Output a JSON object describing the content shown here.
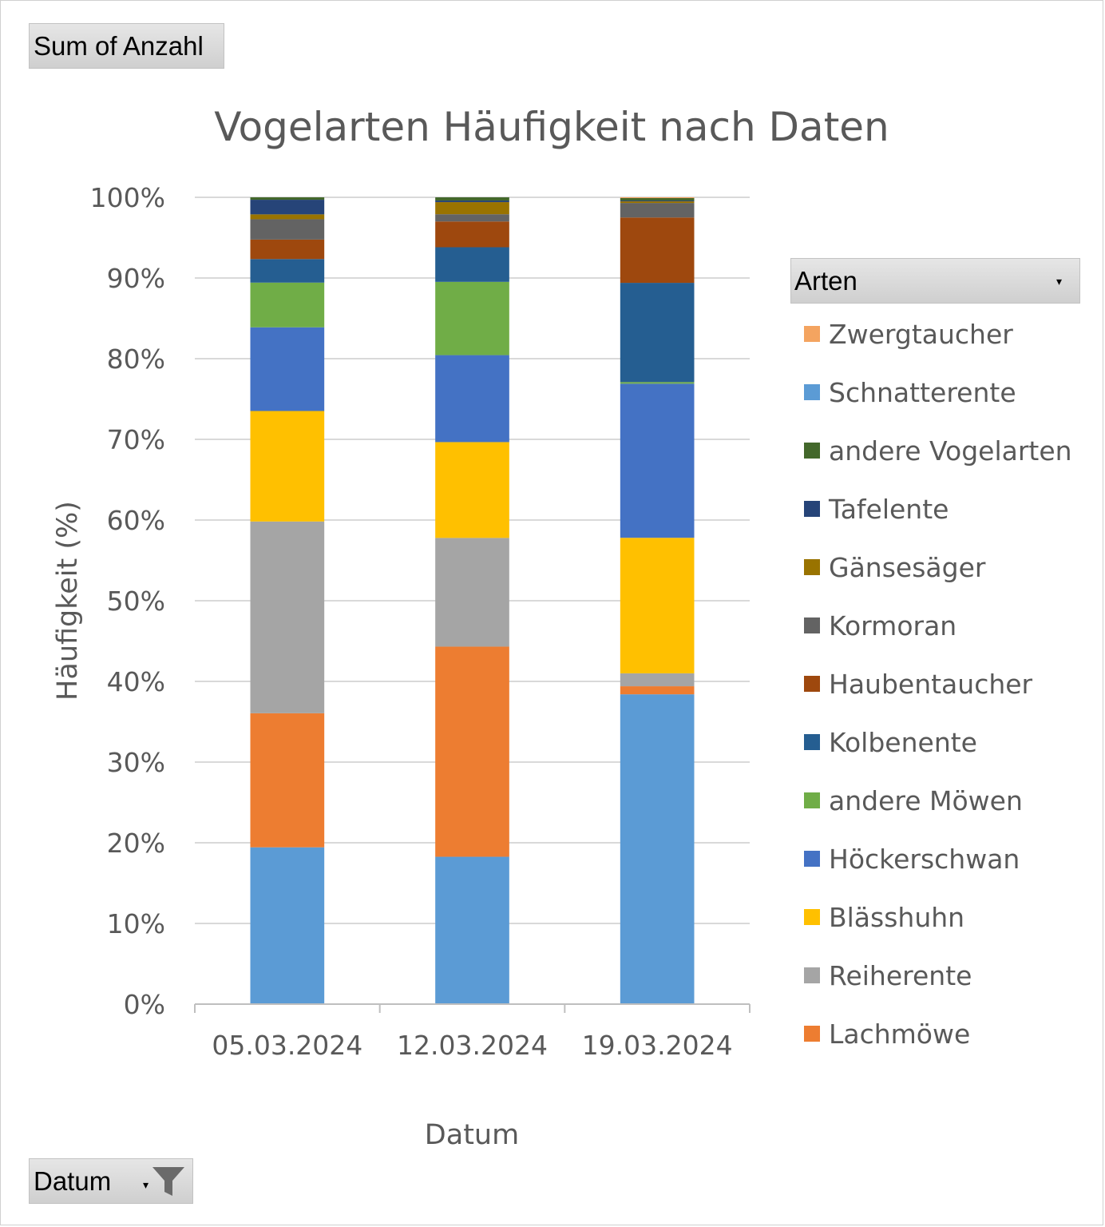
{
  "field_buttons": {
    "values_field": "Sum of Anzahl",
    "axis_field": "Datum",
    "legend_field": "Arten"
  },
  "icons": {
    "dropdown": "chevron-down-icon",
    "filter": "filter-icon"
  },
  "chart_data": {
    "type": "bar",
    "stacked": "100%",
    "title": "Vogelarten Häufigkeit nach Daten",
    "xlabel": "Datum",
    "ylabel": "Häufigkeit (%)",
    "ylim": [
      0,
      100
    ],
    "yticks": [
      "0%",
      "10%",
      "20%",
      "30%",
      "40%",
      "50%",
      "60%",
      "70%",
      "80%",
      "90%",
      "100%"
    ],
    "grid": true,
    "legend_position": "right",
    "categories": [
      "05.03.2024",
      "12.03.2024",
      "19.03.2024"
    ],
    "series": [
      {
        "name": "Schnatterente",
        "color": "#5B9BD5",
        "values": [
          19.3,
          18.3,
          38.4
        ]
      },
      {
        "name": "Lachmöwe",
        "color": "#ED7D31",
        "values": [
          16.5,
          26.1,
          1.0
        ]
      },
      {
        "name": "Reiherente",
        "color": "#A5A5A5",
        "values": [
          23.6,
          13.5,
          1.6
        ]
      },
      {
        "name": "Blässhuhn",
        "color": "#FFC000",
        "values": [
          13.6,
          11.9,
          16.8
        ]
      },
      {
        "name": "Höckerschwan",
        "color": "#4472C4",
        "values": [
          10.3,
          10.8,
          19.1
        ]
      },
      {
        "name": "andere Möwen",
        "color": "#70AD47",
        "values": [
          5.5,
          9.1,
          0.2
        ]
      },
      {
        "name": "Kolbenente",
        "color": "#255E91",
        "values": [
          2.9,
          4.3,
          12.3
        ]
      },
      {
        "name": "Haubentaucher",
        "color": "#9E480E",
        "values": [
          2.4,
          3.2,
          8.1
        ]
      },
      {
        "name": "Kormoran",
        "color": "#636363",
        "values": [
          2.5,
          0.9,
          1.8
        ]
      },
      {
        "name": "Gänsesäger",
        "color": "#997300",
        "values": [
          0.6,
          1.5,
          0.2
        ]
      },
      {
        "name": "Tafelente",
        "color": "#264478",
        "values": [
          1.8,
          0.2,
          0.1
        ]
      },
      {
        "name": "andere Vogelarten",
        "color": "#43682B",
        "values": [
          0.3,
          0.4,
          0.3
        ]
      },
      {
        "name": "Zwergtaucher",
        "color": "#F4A460",
        "values": [
          0.0,
          0.0,
          0.1
        ]
      }
    ],
    "legend_order": [
      "Zwergtaucher",
      "Schnatterente",
      "andere Vogelarten",
      "Tafelente",
      "Gänsesäger",
      "Kormoran",
      "Haubentaucher",
      "Kolbenente",
      "andere Möwen",
      "Höckerschwan",
      "Blässhuhn",
      "Reiherente",
      "Lachmöwe"
    ]
  }
}
